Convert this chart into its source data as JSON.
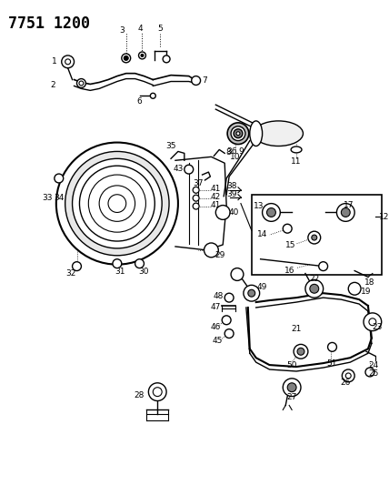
{
  "title": "7751 1200",
  "bg_color": "#ffffff",
  "line_color": "#000000",
  "text_color": "#000000",
  "label_fontsize": 6.5,
  "title_fontsize": 12,
  "fig_width": 4.28,
  "fig_height": 5.33,
  "dpi": 100
}
